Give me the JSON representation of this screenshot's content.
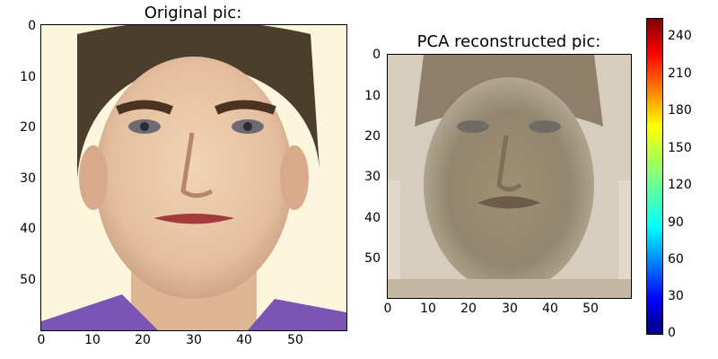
{
  "left_panel": {
    "title": "Original pic:",
    "x_ticks": [
      "0",
      "10",
      "20",
      "30",
      "40",
      "50"
    ],
    "y_ticks": [
      "0",
      "10",
      "20",
      "30",
      "40",
      "50"
    ]
  },
  "right_panel": {
    "title": "PCA reconstructed pic:",
    "x_ticks": [
      "0",
      "10",
      "20",
      "30",
      "40",
      "50"
    ],
    "y_ticks": [
      "0",
      "10",
      "20",
      "30",
      "40",
      "50"
    ]
  },
  "colorbar": {
    "ticks": [
      "240",
      "210",
      "180",
      "150",
      "120",
      "90",
      "60",
      "30",
      "0"
    ],
    "colormap": "jet",
    "range": [
      0,
      255
    ]
  },
  "colors": {
    "orig_bg": "#fbf6dd",
    "orig_skin": "#e8c6a4",
    "orig_hair": "#4b3e2c",
    "orig_shirt": "#7b55b6",
    "pca_bg": "#d6cdbf",
    "pca_face": "#9a8c73"
  }
}
